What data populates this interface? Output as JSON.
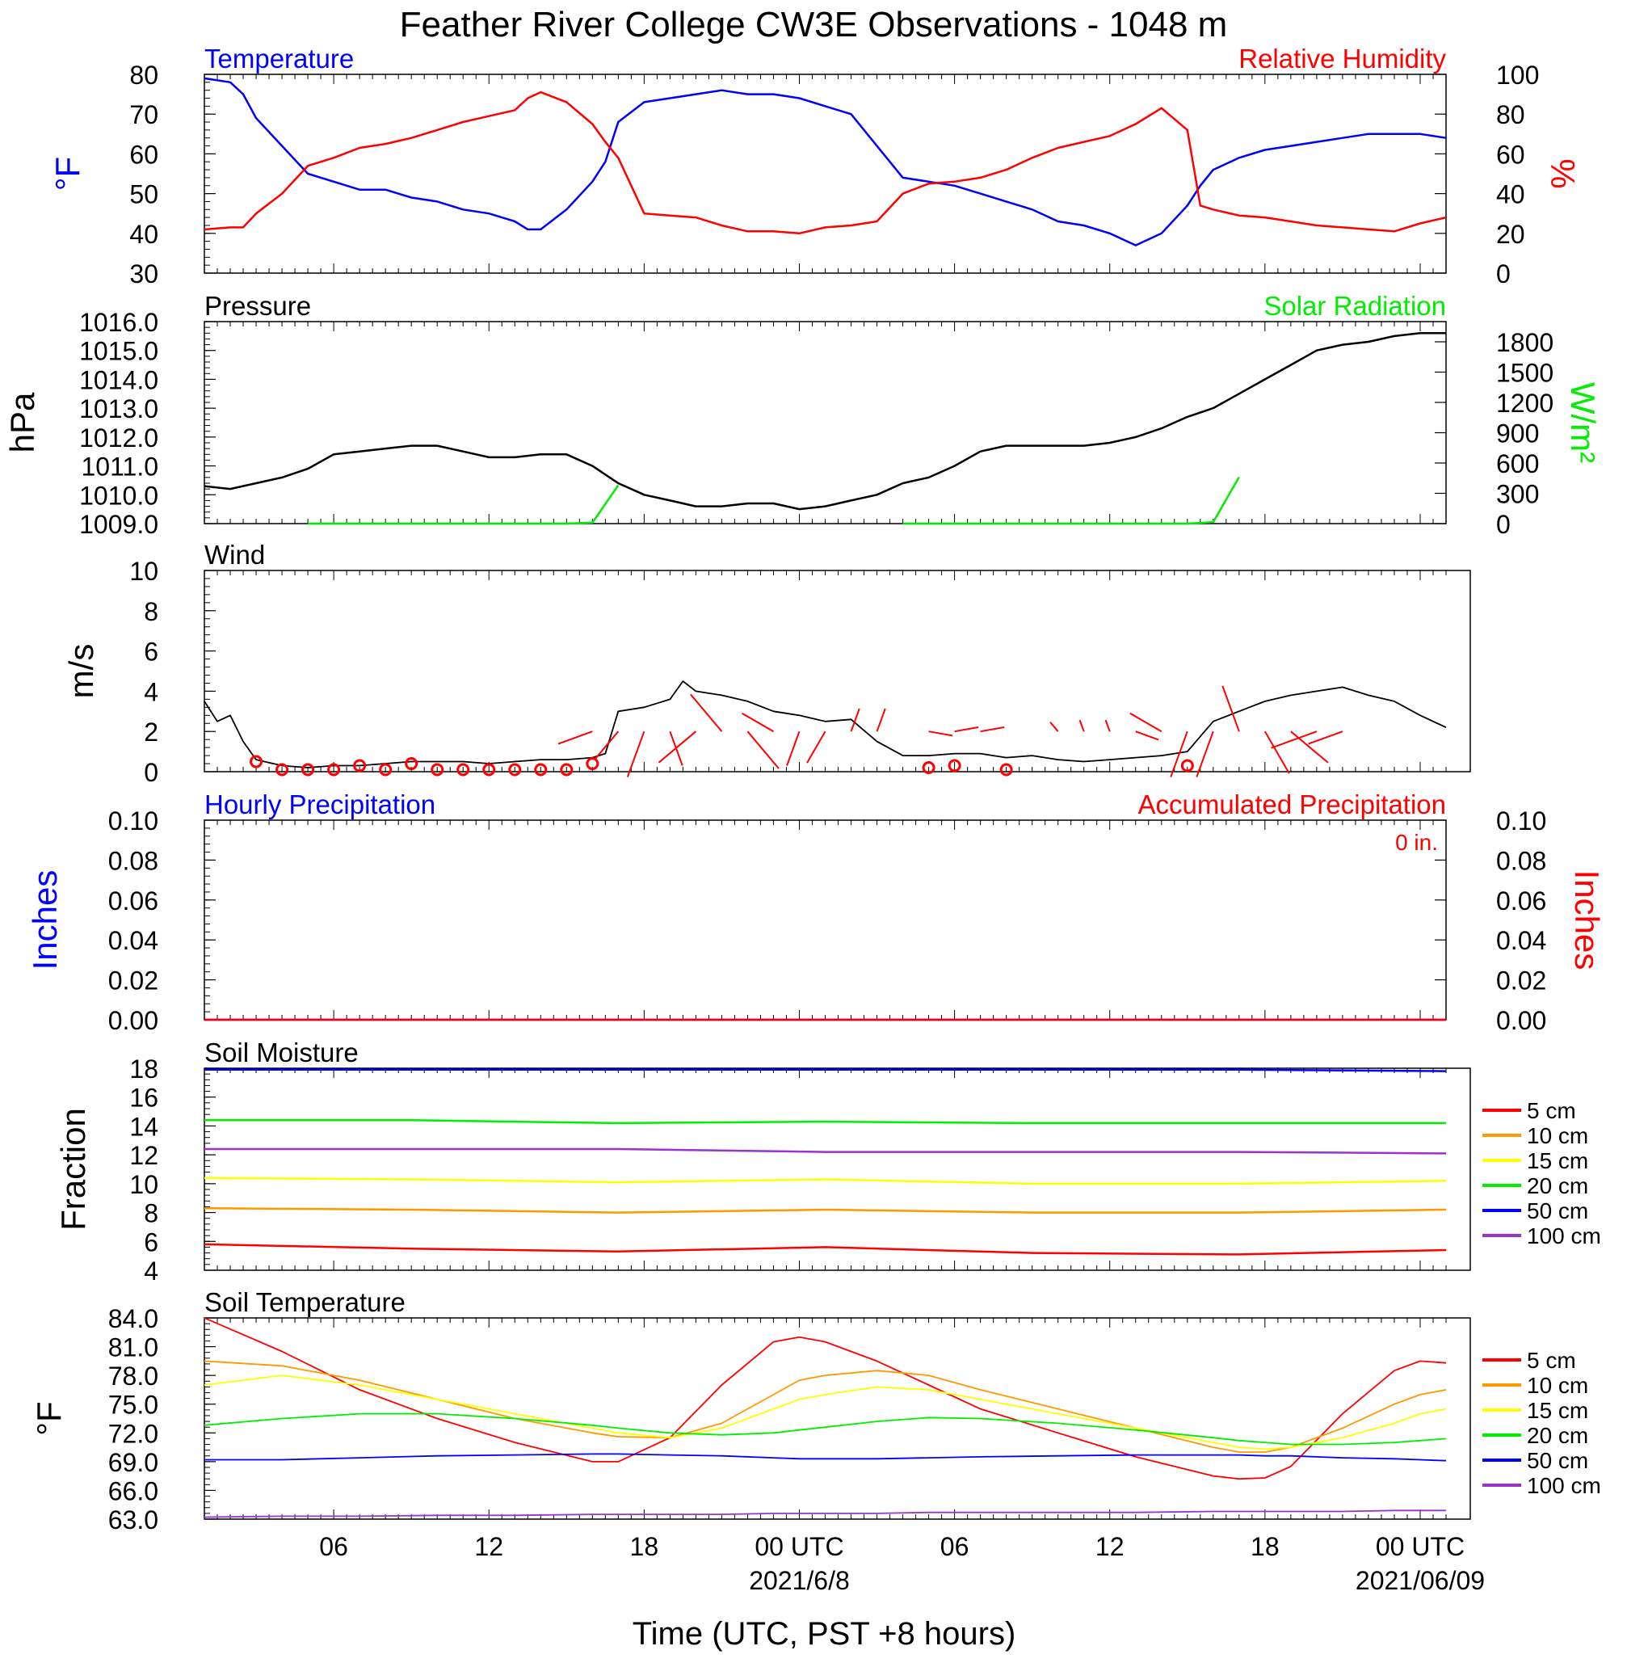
{
  "title": "Feather River College CW3E Observations - 1048 m",
  "x_axis": {
    "label": "Time (UTC, PST +8 hours)",
    "range_hours": [
      0,
      48
    ],
    "ticks": [
      {
        "h": 5,
        "label": "06"
      },
      {
        "h": 11,
        "label": "12"
      },
      {
        "h": 17,
        "label": "18"
      },
      {
        "h": 23,
        "label": "00 UTC"
      },
      {
        "h": 29,
        "label": "06"
      },
      {
        "h": 35,
        "label": "12"
      },
      {
        "h": 41,
        "label": "18"
      },
      {
        "h": 47,
        "label": "00 UTC"
      }
    ],
    "date_labels": [
      {
        "h": 23,
        "label": "2021/6/8"
      },
      {
        "h": 47,
        "label": "2021/06/09"
      }
    ]
  },
  "colors": {
    "temperature": "#0000ff",
    "humidity": "#ff0000",
    "pressure": "#000000",
    "solar": "#00ee00",
    "wind": "#000000",
    "barb": "#ff0000",
    "hourly_precip": "#0000ff",
    "accum_precip": "#ff0000",
    "depth_5": "#ff0000",
    "depth_10": "#ff9900",
    "depth_15": "#ffff00",
    "depth_20": "#00ee00",
    "depth_50": "#0000ff",
    "depth_100": "#9933cc"
  },
  "legend": [
    {
      "label": "5 cm",
      "color_key": "depth_5"
    },
    {
      "label": "10 cm",
      "color_key": "depth_10"
    },
    {
      "label": "15 cm",
      "color_key": "depth_15"
    },
    {
      "label": "20 cm",
      "color_key": "depth_20"
    },
    {
      "label": "50 cm",
      "color_key": "depth_50"
    },
    {
      "label": "100 cm",
      "color_key": "depth_100"
    }
  ],
  "chart_data": [
    {
      "type": "line",
      "title_left": "Temperature",
      "title_right": "Relative Humidity",
      "ylabel_left": "°F",
      "ylabel_right": "%",
      "ylim_left": [
        30,
        80
      ],
      "yticks_left": [
        "30",
        "40",
        "50",
        "60",
        "70",
        "80"
      ],
      "ylim_right": [
        0,
        100
      ],
      "yticks_right": [
        "0",
        "20",
        "40",
        "60",
        "80",
        "100"
      ],
      "x_hours": [
        0,
        1,
        1.5,
        2,
        3,
        4,
        5,
        6,
        7,
        8,
        9,
        10,
        11,
        12,
        12.5,
        13,
        14,
        15,
        15.5,
        16,
        17,
        18,
        19,
        20,
        21,
        22,
        23,
        24,
        25,
        26,
        27,
        28,
        29,
        30,
        31,
        32,
        33,
        34,
        35,
        36,
        37,
        38,
        38.5,
        39,
        40,
        41,
        42,
        43,
        44,
        45,
        46,
        47,
        48
      ],
      "series": [
        {
          "name": "Temperature",
          "axis": "left",
          "values": [
            79,
            78,
            75,
            69,
            62,
            55,
            53,
            51,
            51,
            49,
            48,
            46,
            45,
            43,
            41,
            41,
            46,
            53,
            58,
            68,
            73,
            74,
            75,
            76,
            75,
            75,
            74,
            72,
            70,
            62,
            54,
            53,
            52,
            50,
            48,
            46,
            43,
            42,
            40,
            37,
            40,
            47,
            52,
            56,
            59,
            61,
            62,
            63,
            64,
            65,
            65,
            65,
            64
          ]
        },
        {
          "name": "Relative Humidity",
          "axis": "right",
          "values": [
            22,
            23,
            23,
            30,
            40,
            54,
            58,
            63,
            65,
            68,
            72,
            76,
            79,
            82,
            88,
            91,
            86,
            75,
            66,
            58,
            30,
            29,
            28,
            24,
            21,
            21,
            20,
            23,
            24,
            26,
            40,
            45,
            46,
            48,
            52,
            58,
            63,
            66,
            69,
            75,
            83,
            72,
            34,
            32,
            29,
            28,
            26,
            24,
            23,
            22,
            21,
            25,
            28
          ]
        }
      ]
    },
    {
      "type": "line",
      "title_left": "Pressure",
      "title_right": "Solar Radiation",
      "ylabel_left": "hPa",
      "ylabel_right": "W/m²",
      "ylim_left": [
        1009,
        1016
      ],
      "yticks_left": [
        "1009.0",
        "1010.0",
        "1011.0",
        "1012.0",
        "1013.0",
        "1014.0",
        "1015.0",
        "1016.0"
      ],
      "ylim_right": [
        0,
        2000
      ],
      "yticks_right": [
        "0",
        "300",
        "600",
        "900",
        "1200",
        "1500",
        "1800"
      ],
      "x_hours": [
        0,
        1,
        2,
        3,
        4,
        5,
        6,
        7,
        8,
        9,
        10,
        11,
        12,
        13,
        14,
        15,
        16,
        17,
        18,
        19,
        20,
        21,
        22,
        23,
        24,
        25,
        26,
        27,
        28,
        29,
        30,
        31,
        32,
        33,
        34,
        35,
        36,
        37,
        38,
        39,
        40,
        41,
        42,
        43,
        44,
        45,
        46,
        47,
        48
      ],
      "series": [
        {
          "name": "Pressure",
          "axis": "left",
          "values": [
            1010.3,
            1010.2,
            1010.4,
            1010.6,
            1010.9,
            1011.4,
            1011.5,
            1011.6,
            1011.7,
            1011.7,
            1011.5,
            1011.3,
            1011.3,
            1011.4,
            1011.4,
            1011.0,
            1010.4,
            1010.0,
            1009.8,
            1009.6,
            1009.6,
            1009.7,
            1009.7,
            1009.5,
            1009.6,
            1009.8,
            1010.0,
            1010.4,
            1010.6,
            1011.0,
            1011.5,
            1011.7,
            1011.7,
            1011.7,
            1011.7,
            1011.8,
            1012.0,
            1012.3,
            1012.7,
            1013.0,
            1013.5,
            1014.0,
            1014.5,
            1015.0,
            1015.2,
            1015.3,
            1015.5,
            1015.6,
            1015.6
          ]
        },
        {
          "name": "Solar Radiation",
          "axis": "right",
          "values": [
            null,
            null,
            null,
            null,
            0,
            0,
            0,
            0,
            0,
            0,
            0,
            0,
            0,
            0,
            0,
            10,
            380,
            null,
            null,
            null,
            null,
            null,
            null,
            null,
            null,
            null,
            null,
            0,
            0,
            0,
            0,
            0,
            0,
            0,
            0,
            0,
            0,
            0,
            0,
            15,
            460,
            null,
            null,
            null,
            null,
            null,
            null,
            null,
            null
          ]
        }
      ]
    },
    {
      "type": "line",
      "title_left": "Wind",
      "ylabel_left": "m/s",
      "ylim_left": [
        0,
        10
      ],
      "yticks_left": [
        "0",
        "2",
        "4",
        "6",
        "8",
        "10"
      ],
      "x_hours": [
        0,
        0.5,
        1,
        1.5,
        2,
        3,
        4,
        5,
        6,
        7,
        8,
        9,
        10,
        11,
        12,
        13,
        14,
        15,
        15.5,
        16,
        17,
        18,
        18.5,
        19,
        20,
        21,
        22,
        23,
        24,
        25,
        26,
        27,
        28,
        29,
        30,
        31,
        32,
        33,
        34,
        35,
        36,
        37,
        38,
        39,
        40,
        41,
        42,
        43,
        44,
        45,
        46,
        47,
        48
      ],
      "series": [
        {
          "name": "Wind",
          "axis": "left",
          "values": [
            3.5,
            2.5,
            2.8,
            1.5,
            0.6,
            0.3,
            0.2,
            0.3,
            0.3,
            0.4,
            0.5,
            0.5,
            0.5,
            0.4,
            0.5,
            0.6,
            0.6,
            0.7,
            0.9,
            3.0,
            3.2,
            3.6,
            4.5,
            4.0,
            3.8,
            3.5,
            3.0,
            2.8,
            2.5,
            2.6,
            1.5,
            0.8,
            0.8,
            0.9,
            0.9,
            0.7,
            0.8,
            0.6,
            0.5,
            0.6,
            0.7,
            0.8,
            1.0,
            2.5,
            3.0,
            3.5,
            3.8,
            4.0,
            4.2,
            3.8,
            3.5,
            2.8,
            2.2
          ]
        }
      ],
      "calm_markers_hours": [
        2,
        3,
        4,
        5,
        6,
        7,
        8,
        9,
        10,
        11,
        12,
        13,
        14,
        15,
        28,
        29,
        31,
        38
      ],
      "calm_marker_values": [
        0.5,
        0.1,
        0.1,
        0.1,
        0.3,
        0.1,
        0.4,
        0.1,
        0.1,
        0.1,
        0.1,
        0.1,
        0.1,
        0.4,
        0.2,
        0.3,
        0.1,
        0.3
      ],
      "barbs": [
        {
          "h": 15,
          "dir": 250,
          "speed": 3
        },
        {
          "h": 16,
          "dir": 220,
          "speed": 3
        },
        {
          "h": 17,
          "dir": 200,
          "speed": 4
        },
        {
          "h": 18,
          "dir": 160,
          "speed": 3
        },
        {
          "h": 19,
          "dir": 230,
          "speed": 4
        },
        {
          "h": 20,
          "dir": 320,
          "speed": 4
        },
        {
          "h": 21,
          "dir": 140,
          "speed": 4
        },
        {
          "h": 22,
          "dir": 300,
          "speed": 3
        },
        {
          "h": 23,
          "dir": 200,
          "speed": 3
        },
        {
          "h": 24,
          "dir": 210,
          "speed": 3
        },
        {
          "h": 25,
          "dir": 20,
          "speed": 2
        },
        {
          "h": 26,
          "dir": 20,
          "speed": 2
        },
        {
          "h": 28,
          "dir": 100,
          "speed": 2
        },
        {
          "h": 29,
          "dir": 80,
          "speed": 2
        },
        {
          "h": 30,
          "dir": 80,
          "speed": 2
        },
        {
          "h": 33,
          "dir": 320,
          "speed": 1
        },
        {
          "h": 34,
          "dir": 340,
          "speed": 1
        },
        {
          "h": 35,
          "dir": 340,
          "speed": 1
        },
        {
          "h": 36,
          "dir": 110,
          "speed": 2
        },
        {
          "h": 37,
          "dir": 300,
          "speed": 3
        },
        {
          "h": 38,
          "dir": 200,
          "speed": 4
        },
        {
          "h": 39,
          "dir": 200,
          "speed": 4
        },
        {
          "h": 40,
          "dir": 340,
          "speed": 4
        },
        {
          "h": 41,
          "dir": 150,
          "speed": 4
        },
        {
          "h": 42,
          "dir": 130,
          "speed": 4
        },
        {
          "h": 43,
          "dir": 250,
          "speed": 4
        },
        {
          "h": 44,
          "dir": 250,
          "speed": 3
        }
      ]
    },
    {
      "type": "bar",
      "title_left": "Hourly Precipitation",
      "title_right": "Accumulated Precipitation",
      "annotation": "0 in.",
      "ylabel_left": "Inches",
      "ylabel_right": "Inches",
      "ylim_left": [
        0,
        0.1
      ],
      "yticks_left": [
        "0.00",
        "0.02",
        "0.04",
        "0.06",
        "0.08",
        "0.10"
      ],
      "ylim_right": [
        0,
        0.1
      ],
      "yticks_right": [
        "0.00",
        "0.02",
        "0.04",
        "0.06",
        "0.08",
        "0.10"
      ],
      "x_hours": [
        0,
        48
      ],
      "series": [
        {
          "name": "Hourly Precipitation",
          "axis": "left",
          "values": [
            0,
            0
          ]
        },
        {
          "name": "Accumulated Precipitation",
          "axis": "right",
          "values": [
            0,
            0
          ]
        }
      ]
    },
    {
      "type": "line",
      "title_left": "Soil Moisture",
      "ylabel_left": "Fraction",
      "ylim_left": [
        4,
        18
      ],
      "yticks_left": [
        "4",
        "6",
        "8",
        "10",
        "12",
        "14",
        "16",
        "18"
      ],
      "x_hours": [
        0,
        8,
        16,
        24,
        32,
        40,
        48
      ],
      "series": [
        {
          "name": "5 cm",
          "values": [
            5.8,
            5.5,
            5.3,
            5.6,
            5.2,
            5.1,
            5.4
          ]
        },
        {
          "name": "10 cm",
          "values": [
            8.3,
            8.2,
            8.0,
            8.2,
            8.0,
            8.0,
            8.2
          ]
        },
        {
          "name": "15 cm",
          "values": [
            10.4,
            10.3,
            10.1,
            10.3,
            10.0,
            10.0,
            10.2
          ]
        },
        {
          "name": "20 cm",
          "values": [
            14.4,
            14.4,
            14.2,
            14.3,
            14.2,
            14.2,
            14.2
          ]
        },
        {
          "name": "50 cm",
          "values": [
            17.9,
            17.9,
            17.9,
            17.9,
            17.9,
            17.9,
            17.8
          ]
        },
        {
          "name": "100 cm",
          "values": [
            12.4,
            12.4,
            12.4,
            12.2,
            12.2,
            12.2,
            12.1
          ]
        }
      ]
    },
    {
      "type": "line",
      "title_left": "Soil Temperature",
      "ylabel_left": "°F",
      "ylim_left": [
        63,
        84
      ],
      "yticks_left": [
        "63.0",
        "66.0",
        "69.0",
        "72.0",
        "75.0",
        "78.0",
        "81.0",
        "84.0"
      ],
      "x_hours": [
        0,
        3,
        6,
        9,
        12,
        15,
        16,
        18,
        20,
        22,
        23,
        24,
        26,
        28,
        30,
        33,
        36,
        39,
        40,
        41,
        42,
        44,
        46,
        47,
        48
      ],
      "series": [
        {
          "name": "5 cm",
          "values": [
            84,
            80.5,
            76.5,
            73.5,
            71.0,
            69.0,
            69.0,
            71.5,
            77.0,
            81.5,
            82.0,
            81.5,
            79.5,
            77.0,
            74.5,
            72.0,
            69.5,
            67.5,
            67.2,
            67.3,
            68.5,
            74.0,
            78.5,
            79.5,
            79.3
          ]
        },
        {
          "name": "10 cm",
          "values": [
            79.5,
            79.0,
            77.5,
            75.5,
            73.5,
            72.0,
            71.6,
            71.5,
            73.0,
            76.0,
            77.5,
            78.0,
            78.5,
            78.0,
            76.5,
            74.5,
            72.5,
            70.5,
            70.0,
            70.0,
            70.5,
            72.5,
            75.0,
            76.0,
            76.5
          ]
        },
        {
          "name": "15 cm",
          "values": [
            77.0,
            78.0,
            77.0,
            75.5,
            74.0,
            72.5,
            72.0,
            71.5,
            72.5,
            74.5,
            75.5,
            76.0,
            76.8,
            76.5,
            75.5,
            74.0,
            72.5,
            71.0,
            70.5,
            70.3,
            70.5,
            71.5,
            73.0,
            74.0,
            74.5
          ]
        },
        {
          "name": "20 cm",
          "values": [
            72.8,
            73.5,
            74.0,
            74.0,
            73.5,
            72.8,
            72.5,
            72.0,
            71.8,
            72.0,
            72.3,
            72.6,
            73.2,
            73.6,
            73.5,
            73.0,
            72.3,
            71.5,
            71.2,
            71.0,
            70.8,
            70.8,
            71.0,
            71.2,
            71.4
          ]
        },
        {
          "name": "50 cm",
          "values": [
            69.2,
            69.2,
            69.4,
            69.6,
            69.7,
            69.8,
            69.8,
            69.7,
            69.6,
            69.4,
            69.3,
            69.3,
            69.3,
            69.4,
            69.5,
            69.6,
            69.7,
            69.7,
            69.7,
            69.6,
            69.6,
            69.4,
            69.3,
            69.2,
            69.1
          ]
        },
        {
          "name": "100 cm",
          "values": [
            63.2,
            63.3,
            63.3,
            63.4,
            63.4,
            63.5,
            63.5,
            63.5,
            63.5,
            63.6,
            63.6,
            63.6,
            63.6,
            63.7,
            63.7,
            63.7,
            63.7,
            63.8,
            63.8,
            63.8,
            63.8,
            63.8,
            63.9,
            63.9,
            63.9
          ]
        }
      ]
    }
  ]
}
